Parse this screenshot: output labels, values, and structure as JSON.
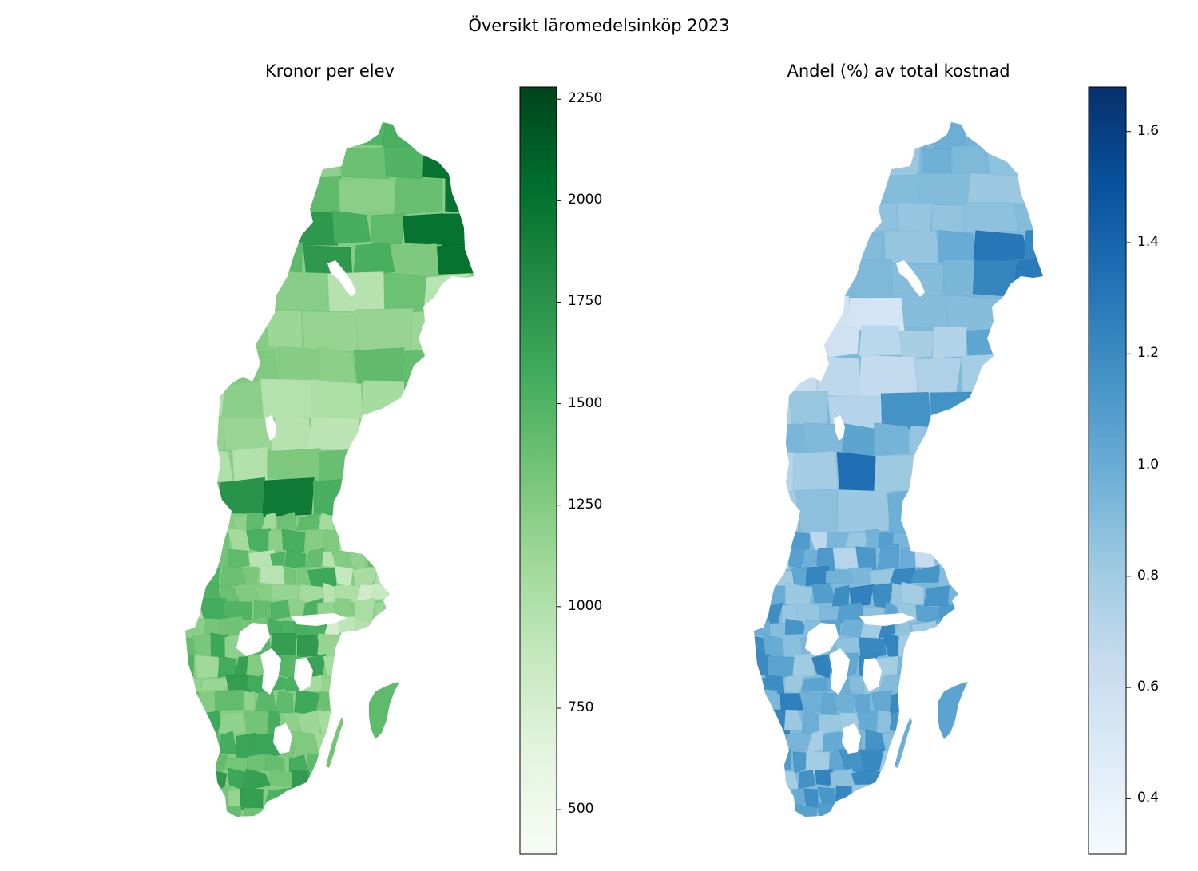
{
  "figure": {
    "title": "Översikt läromedelsinköp 2023"
  },
  "panels": [
    {
      "title": "Kronor per elev",
      "colormap": "Greens",
      "colorbar": {
        "range": [
          390,
          2280
        ],
        "ticks": [
          "500",
          "750",
          "1000",
          "1250",
          "1500",
          "1750",
          "2000",
          "2250"
        ]
      },
      "color_stops": [
        "#f7fcf5",
        "#e5f5e0",
        "#c7e9c0",
        "#a1d99b",
        "#74c476",
        "#41ab5d",
        "#238b45",
        "#006d2c",
        "#00441b"
      ]
    },
    {
      "title": "Andel (%) av total kostnad",
      "colormap": "Blues",
      "colorbar": {
        "range": [
          0.3,
          1.68
        ],
        "ticks": [
          "0.4",
          "0.6",
          "0.8",
          "1.0",
          "1.2",
          "1.4",
          "1.6"
        ]
      },
      "color_stops": [
        "#f7fbff",
        "#deebf7",
        "#c6dbef",
        "#9ecae1",
        "#6baed6",
        "#4292c6",
        "#2171b5",
        "#08519c",
        "#08306b"
      ]
    }
  ]
}
